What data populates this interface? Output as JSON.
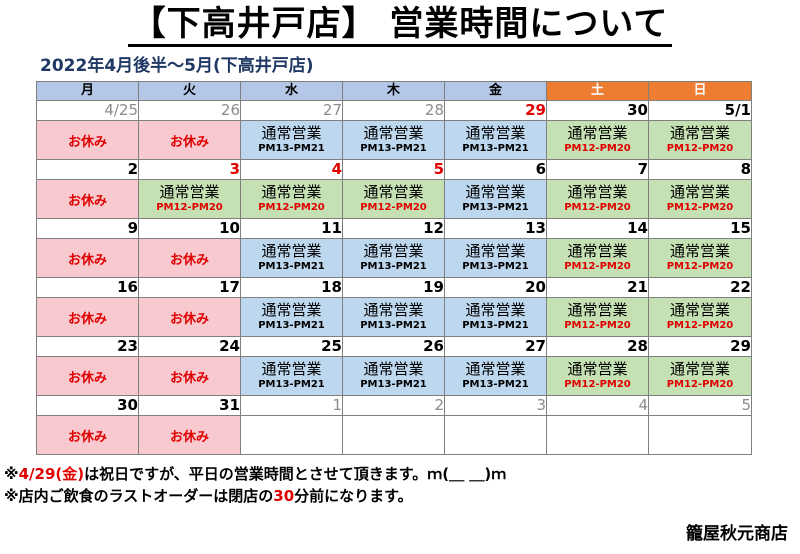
{
  "title": "【下高井戸店】 営業時間について",
  "subtitle": "2022年4月後半～5月(下高井戸店)",
  "calendar": {
    "weekdays": [
      "月",
      "火",
      "水",
      "木",
      "金",
      "土",
      "日"
    ],
    "weekend_color": "#ed7d31",
    "closed_color": "#f8c9cf",
    "weekday_hours_color": "#bdd7ee",
    "weekend_hours_color": "#c5e0b3",
    "weeks": [
      {
        "days": [
          {
            "date": "4/25",
            "style": "dim",
            "type": "closed",
            "label": "お休み"
          },
          {
            "date": "26",
            "style": "dim",
            "type": "closed",
            "label": "お休み"
          },
          {
            "date": "27",
            "style": "dim",
            "type": "wk",
            "label": "通常営業",
            "hours": "PM13-PM21"
          },
          {
            "date": "28",
            "style": "dim",
            "type": "wk",
            "label": "通常営業",
            "hours": "PM13-PM21"
          },
          {
            "date": "29",
            "style": "red",
            "type": "wk",
            "label": "通常営業",
            "hours": "PM13-PM21"
          },
          {
            "date": "30",
            "style": "",
            "type": "sp",
            "label": "通常営業",
            "hours": "PM12-PM20"
          },
          {
            "date": "5/1",
            "style": "",
            "type": "sp",
            "label": "通常営業",
            "hours": "PM12-PM20"
          }
        ]
      },
      {
        "days": [
          {
            "date": "2",
            "style": "",
            "type": "closed",
            "label": "お休み"
          },
          {
            "date": "3",
            "style": "red",
            "type": "sp",
            "label": "通常営業",
            "hours": "PM12-PM20"
          },
          {
            "date": "4",
            "style": "red",
            "type": "sp",
            "label": "通常営業",
            "hours": "PM12-PM20"
          },
          {
            "date": "5",
            "style": "red",
            "type": "sp",
            "label": "通常営業",
            "hours": "PM12-PM20"
          },
          {
            "date": "6",
            "style": "",
            "type": "wk",
            "label": "通常営業",
            "hours": "PM13-PM21"
          },
          {
            "date": "7",
            "style": "",
            "type": "sp",
            "label": "通常営業",
            "hours": "PM12-PM20"
          },
          {
            "date": "8",
            "style": "",
            "type": "sp",
            "label": "通常営業",
            "hours": "PM12-PM20"
          }
        ]
      },
      {
        "days": [
          {
            "date": "9",
            "style": "",
            "type": "closed",
            "label": "お休み"
          },
          {
            "date": "10",
            "style": "",
            "type": "closed",
            "label": "お休み"
          },
          {
            "date": "11",
            "style": "",
            "type": "wk",
            "label": "通常営業",
            "hours": "PM13-PM21"
          },
          {
            "date": "12",
            "style": "",
            "type": "wk",
            "label": "通常営業",
            "hours": "PM13-PM21"
          },
          {
            "date": "13",
            "style": "",
            "type": "wk",
            "label": "通常営業",
            "hours": "PM13-PM21"
          },
          {
            "date": "14",
            "style": "",
            "type": "sp",
            "label": "通常営業",
            "hours": "PM12-PM20"
          },
          {
            "date": "15",
            "style": "",
            "type": "sp",
            "label": "通常営業",
            "hours": "PM12-PM20"
          }
        ]
      },
      {
        "days": [
          {
            "date": "16",
            "style": "",
            "type": "closed",
            "label": "お休み"
          },
          {
            "date": "17",
            "style": "",
            "type": "closed",
            "label": "お休み"
          },
          {
            "date": "18",
            "style": "",
            "type": "wk",
            "label": "通常営業",
            "hours": "PM13-PM21"
          },
          {
            "date": "19",
            "style": "",
            "type": "wk",
            "label": "通常営業",
            "hours": "PM13-PM21"
          },
          {
            "date": "20",
            "style": "",
            "type": "wk",
            "label": "通常営業",
            "hours": "PM13-PM21"
          },
          {
            "date": "21",
            "style": "",
            "type": "sp",
            "label": "通常営業",
            "hours": "PM12-PM20"
          },
          {
            "date": "22",
            "style": "",
            "type": "sp",
            "label": "通常営業",
            "hours": "PM12-PM20"
          }
        ]
      },
      {
        "days": [
          {
            "date": "23",
            "style": "",
            "type": "closed",
            "label": "お休み"
          },
          {
            "date": "24",
            "style": "",
            "type": "closed",
            "label": "お休み"
          },
          {
            "date": "25",
            "style": "",
            "type": "wk",
            "label": "通常営業",
            "hours": "PM13-PM21"
          },
          {
            "date": "26",
            "style": "",
            "type": "wk",
            "label": "通常営業",
            "hours": "PM13-PM21"
          },
          {
            "date": "27",
            "style": "",
            "type": "wk",
            "label": "通常営業",
            "hours": "PM13-PM21"
          },
          {
            "date": "28",
            "style": "",
            "type": "sp",
            "label": "通常営業",
            "hours": "PM12-PM20"
          },
          {
            "date": "29",
            "style": "",
            "type": "sp",
            "label": "通常営業",
            "hours": "PM12-PM20"
          }
        ]
      },
      {
        "days": [
          {
            "date": "30",
            "style": "",
            "type": "closed",
            "label": "お休み"
          },
          {
            "date": "31",
            "style": "",
            "type": "closed",
            "label": "お休み"
          },
          {
            "date": "1",
            "style": "dim",
            "type": "blank"
          },
          {
            "date": "2",
            "style": "dim",
            "type": "blank"
          },
          {
            "date": "3",
            "style": "dim",
            "type": "blank"
          },
          {
            "date": "4",
            "style": "dim",
            "type": "blank"
          },
          {
            "date": "5",
            "style": "dim",
            "type": "blank"
          }
        ]
      }
    ]
  },
  "notes": {
    "line1_prefix": "※",
    "line1_highlight": "4/29(金)",
    "line1_suffix": "は祝日ですが、平日の営業時間とさせて頂きます。ｍ(＿ ＿)ｍ",
    "line2_prefix": "※店内ご飲食のラストオーダーは閉店の",
    "line2_highlight": "30",
    "line2_suffix": "分前になります。"
  },
  "shop_name": "籠屋秋元商店"
}
